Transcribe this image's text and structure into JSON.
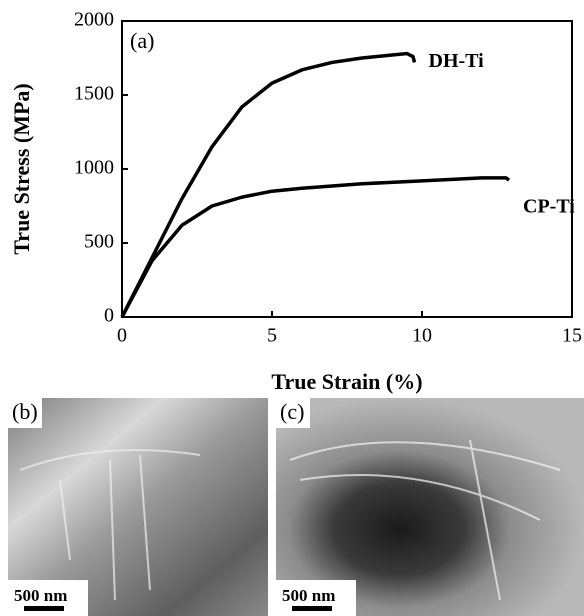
{
  "chart_data": {
    "type": "line",
    "xlabel": "True Strain (%)",
    "ylabel": "True Stress (MPa)",
    "annotation": "(a)",
    "xlim": [
      0,
      15
    ],
    "xticks": [
      0,
      5,
      10,
      15
    ],
    "ylim": [
      0,
      2000
    ],
    "yticks": [
      0,
      500,
      1000,
      1500,
      2000
    ],
    "series": [
      {
        "name": "DH-Ti",
        "color": "#000000",
        "x": [
          0,
          1,
          2,
          3,
          4,
          5,
          6,
          7,
          8,
          9,
          9.5,
          9.7,
          9.75
        ],
        "values": [
          0,
          400,
          800,
          1150,
          1420,
          1580,
          1670,
          1720,
          1750,
          1770,
          1780,
          1760,
          1720
        ]
      },
      {
        "name": "CP-Ti",
        "color": "#000000",
        "x": [
          0,
          1,
          2,
          3,
          4,
          5,
          6,
          8,
          10,
          12,
          12.8,
          12.9
        ],
        "values": [
          0,
          380,
          620,
          750,
          810,
          850,
          870,
          900,
          920,
          940,
          940,
          925
        ]
      }
    ]
  },
  "panels": [
    {
      "label": "(b)",
      "scale_bar": "500 nm"
    },
    {
      "label": "(c)",
      "scale_bar": "500 nm"
    }
  ]
}
